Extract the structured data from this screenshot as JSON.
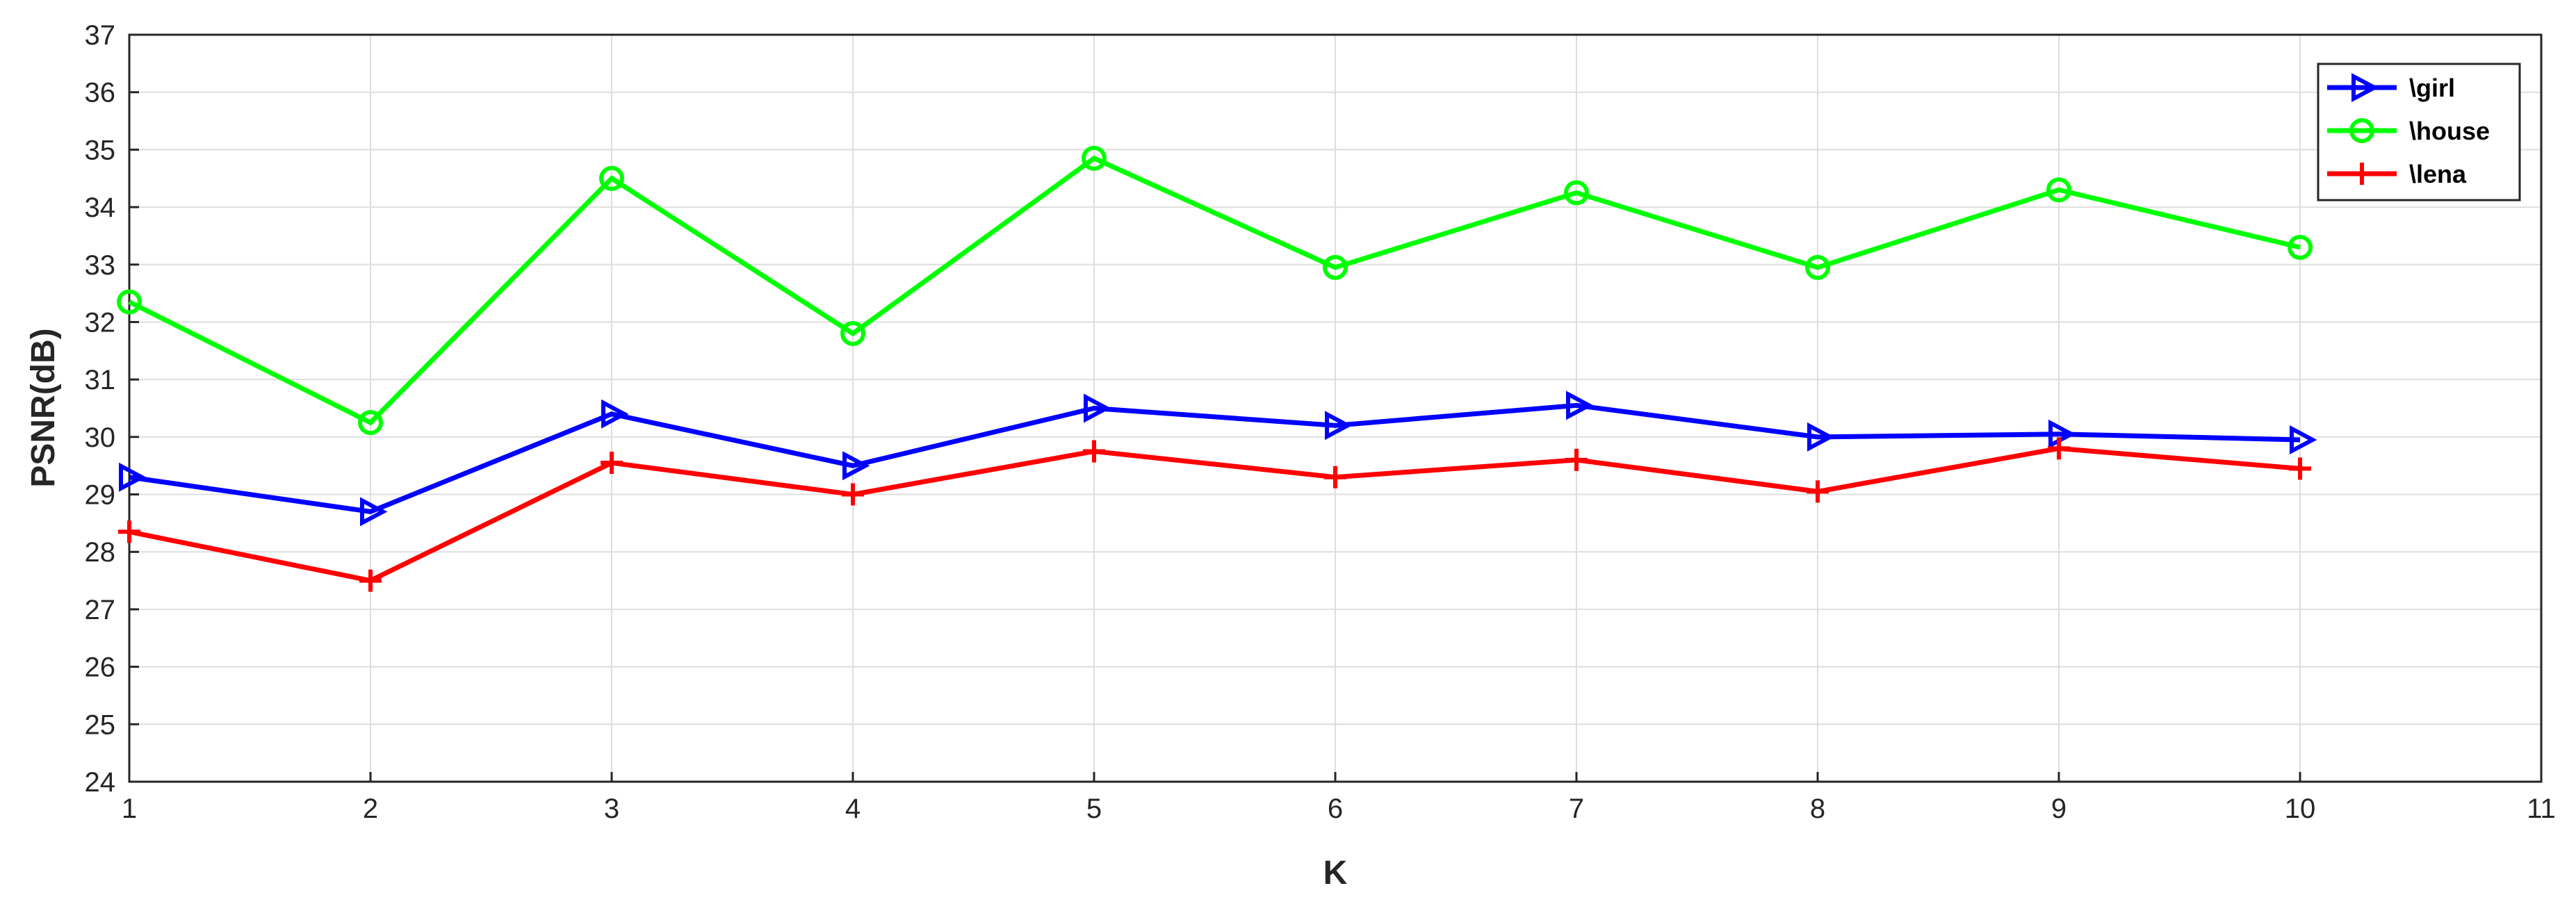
{
  "chart_data": {
    "type": "line",
    "xlabel": "K",
    "ylabel": "PSNR(dB)",
    "xlim": [
      1,
      11
    ],
    "ylim": [
      24,
      37
    ],
    "xticks": [
      "1",
      "2",
      "3",
      "4",
      "5",
      "6",
      "7",
      "8",
      "9",
      "10",
      "11"
    ],
    "yticks": [
      "24",
      "25",
      "26",
      "27",
      "28",
      "29",
      "30",
      "31",
      "32",
      "33",
      "34",
      "35",
      "36",
      "37"
    ],
    "grid": true,
    "legend_position": "top-right",
    "x": [
      1,
      2,
      3,
      4,
      5,
      6,
      7,
      8,
      9,
      10
    ],
    "series": [
      {
        "name": "\\girl",
        "color": "#0000ff",
        "marker": "triangle-right",
        "values": [
          29.3,
          28.7,
          30.4,
          29.5,
          30.5,
          30.2,
          30.55,
          30.0,
          30.05,
          29.95
        ]
      },
      {
        "name": "\\house",
        "color": "#00ff00",
        "marker": "circle",
        "values": [
          32.35,
          30.25,
          34.5,
          31.8,
          34.85,
          32.95,
          34.25,
          32.95,
          34.3,
          33.3
        ]
      },
      {
        "name": "\\lena",
        "color": "#ff0000",
        "marker": "plus",
        "values": [
          28.35,
          27.5,
          29.55,
          29.0,
          29.75,
          29.3,
          29.6,
          29.05,
          29.8,
          29.45
        ]
      }
    ]
  }
}
